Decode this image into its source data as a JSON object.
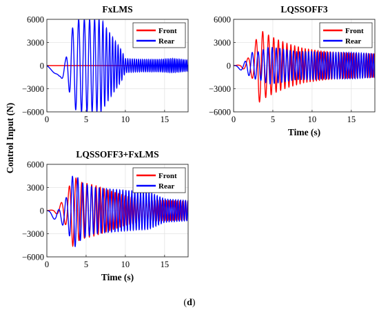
{
  "figure": {
    "ylabel": "Control Input (N)",
    "caption_open": "(",
    "caption_letter": "d",
    "caption_close": ")"
  },
  "colors": {
    "front": "#ff0000",
    "rear": "#0000ff"
  },
  "chart_data": [
    {
      "type": "line",
      "title": "FxLMS",
      "xlabel": "",
      "ylabel": "Control Input (N)",
      "xlim": [
        0,
        18
      ],
      "ylim": [
        -6000,
        6000
      ],
      "xticks": [
        0,
        5,
        10,
        15
      ],
      "yticks": [
        -6000,
        -3000,
        0,
        3000,
        6000
      ],
      "grid": true,
      "legend": "top-right",
      "series": [
        {
          "name": "Front",
          "color": "#ff0000",
          "env_t": [
            0,
            18
          ],
          "env_a": [
            0,
            0
          ],
          "freq": [
            [
              0,
              1.0
            ],
            [
              18,
              1.0
            ]
          ],
          "offset": [
            [
              0,
              0
            ],
            [
              18,
              0
            ]
          ]
        },
        {
          "name": "Rear",
          "color": "#0000ff",
          "env_t": [
            0,
            1.5,
            2.4,
            3.1,
            3.8,
            4.6,
            6.0,
            7.0,
            7.5,
            8.5,
            9.5,
            10.0,
            12.0,
            14.5,
            16.0,
            18.0
          ],
          "env_a": [
            0,
            150,
            1200,
            4500,
            6000,
            6000,
            6000,
            6000,
            5000,
            3500,
            2000,
            900,
            800,
            800,
            900,
            700
          ],
          "freq": [
            [
              0,
              0.6
            ],
            [
              3,
              1.2
            ],
            [
              6,
              1.6
            ],
            [
              9,
              3.0
            ],
            [
              12,
              4.0
            ],
            [
              18,
              4.5
            ]
          ],
          "offset": [
            [
              0,
              0
            ],
            [
              1.6,
              -1500
            ],
            [
              2.2,
              -600
            ],
            [
              2.8,
              0
            ],
            [
              18,
              0
            ]
          ]
        }
      ]
    },
    {
      "type": "line",
      "title": "LQSSOFF3",
      "xlabel": "Time (s)",
      "ylabel": "",
      "xlim": [
        0,
        18
      ],
      "ylim": [
        -6000,
        6000
      ],
      "xticks": [
        0,
        5,
        10,
        15
      ],
      "yticks": [
        -6000,
        -3000,
        0,
        3000,
        6000
      ],
      "grid": true,
      "legend": "top-right",
      "series": [
        {
          "name": "Front",
          "color": "#ff0000",
          "env_t": [
            0,
            0.8,
            1.6,
            2.5,
            3.2,
            4.0,
            5.5,
            7.0,
            9.0,
            11.0,
            13.0,
            15.0,
            18.0
          ],
          "env_a": [
            0,
            100,
            700,
            1800,
            4800,
            4200,
            3400,
            2800,
            2200,
            1900,
            1700,
            1600,
            1500
          ],
          "freq": [
            [
              0,
              0.5
            ],
            [
              3,
              1.1
            ],
            [
              6,
              1.8
            ],
            [
              10,
              2.5
            ],
            [
              18,
              3.0
            ]
          ],
          "offset": [
            [
              0,
              0
            ],
            [
              18,
              0
            ]
          ]
        },
        {
          "name": "Rear",
          "color": "#0000ff",
          "env_t": [
            0,
            1.2,
            2.3,
            3.2,
            4.5,
            6.0,
            8.0,
            10.0,
            12.0,
            15.0,
            18.0
          ],
          "env_a": [
            0,
            400,
            1700,
            1800,
            2400,
            2200,
            1800,
            1800,
            1700,
            1700,
            1500
          ],
          "freq": [
            [
              0,
              0.5
            ],
            [
              3,
              1.4
            ],
            [
              6,
              2.2
            ],
            [
              10,
              2.8
            ],
            [
              18,
              3.3
            ]
          ],
          "offset": [
            [
              0,
              0
            ],
            [
              1.0,
              -300
            ],
            [
              2.0,
              0
            ],
            [
              18,
              0
            ]
          ]
        }
      ]
    },
    {
      "type": "line",
      "title": "LQSSOFF3+FxLMS",
      "xlabel": "Time (s)",
      "ylabel": "",
      "xlim": [
        0,
        18
      ],
      "ylim": [
        -6000,
        6000
      ],
      "xticks": [
        0,
        5,
        10,
        15
      ],
      "yticks": [
        -6000,
        -3000,
        0,
        3000,
        6000
      ],
      "grid": true,
      "legend": "top-right",
      "series": [
        {
          "name": "Front",
          "color": "#ff0000",
          "env_t": [
            0,
            0.8,
            1.6,
            2.5,
            3.3,
            4.3,
            6.0,
            8.0,
            10.0,
            12.0,
            15.0,
            18.0
          ],
          "env_a": [
            0,
            100,
            700,
            2000,
            4600,
            3700,
            3300,
            2600,
            1900,
            1500,
            1300,
            1200
          ],
          "freq": [
            [
              0,
              0.5
            ],
            [
              3,
              1.1
            ],
            [
              6,
              1.8
            ],
            [
              10,
              2.5
            ],
            [
              18,
              3.0
            ]
          ],
          "offset": [
            [
              0,
              0
            ],
            [
              18,
              0
            ]
          ]
        },
        {
          "name": "Rear",
          "color": "#0000ff",
          "env_t": [
            0,
            1.5,
            2.5,
            3.4,
            4.5,
            6.0,
            8.0,
            10.0,
            13.0,
            15.0,
            18.0
          ],
          "env_a": [
            0,
            800,
            2000,
            4900,
            3600,
            3000,
            2800,
            2600,
            2400,
            1500,
            1300
          ],
          "freq": [
            [
              0,
              0.5
            ],
            [
              3,
              1.3
            ],
            [
              6,
              2.0
            ],
            [
              10,
              2.6
            ],
            [
              18,
              3.2
            ]
          ],
          "offset": [
            [
              0,
              0
            ],
            [
              1.2,
              -800
            ],
            [
              2.2,
              -400
            ],
            [
              3.0,
              0
            ],
            [
              18,
              0
            ]
          ]
        }
      ]
    }
  ]
}
